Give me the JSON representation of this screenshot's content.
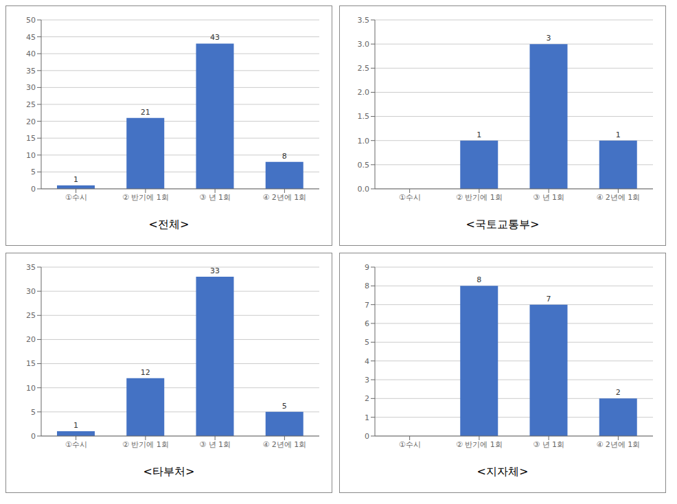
{
  "chart_data": [
    {
      "type": "bar",
      "title": "<전체>",
      "categories": [
        "①수시",
        "② 반기에 1회",
        "③ 년 1회",
        "④ 2년에 1회"
      ],
      "values": [
        1,
        21,
        43,
        8
      ],
      "color": "#4472C4",
      "ylim": [
        0,
        50
      ],
      "yticks": [
        0,
        5,
        10,
        15,
        20,
        25,
        30,
        35,
        40,
        45,
        50
      ],
      "grid": true,
      "data_labels": true
    },
    {
      "type": "bar",
      "title": "<국토교통부>",
      "categories": [
        "①수시",
        "② 반기에 1회",
        "③ 년 1회",
        "④ 2년에 1회"
      ],
      "values": [
        0,
        1,
        3,
        1
      ],
      "color": "#4472C4",
      "ylim": [
        0,
        3.5
      ],
      "yticks": [
        {
          "value": 0,
          "label": "0.0"
        },
        0.5,
        {
          "value": 1,
          "label": "1.0"
        },
        1.5,
        {
          "value": 2,
          "label": "2.0"
        },
        2.5,
        {
          "value": 3,
          "label": "3.0"
        },
        3.5
      ],
      "grid": true,
      "data_labels": true
    },
    {
      "type": "bar",
      "title": "<타부처>",
      "categories": [
        "①수시",
        "② 반기에 1회",
        "③ 년 1회",
        "④ 2년에 1회"
      ],
      "values": [
        1,
        12,
        33,
        5
      ],
      "color": "#4472C4",
      "ylim": [
        0,
        35
      ],
      "yticks": [
        0,
        5,
        10,
        15,
        20,
        25,
        30,
        35
      ],
      "grid": true,
      "data_labels": true
    },
    {
      "type": "bar",
      "title": "<지자체>",
      "categories": [
        "①수시",
        "② 반기에 1회",
        "③ 년 1회",
        "④ 2년에 1회"
      ],
      "values": [
        0,
        8,
        7,
        2
      ],
      "color": "#4472C4",
      "ylim": [
        0,
        9
      ],
      "yticks": [
        0,
        1,
        2,
        3,
        4,
        5,
        6,
        7,
        8,
        9
      ],
      "grid": true,
      "data_labels": true
    }
  ]
}
